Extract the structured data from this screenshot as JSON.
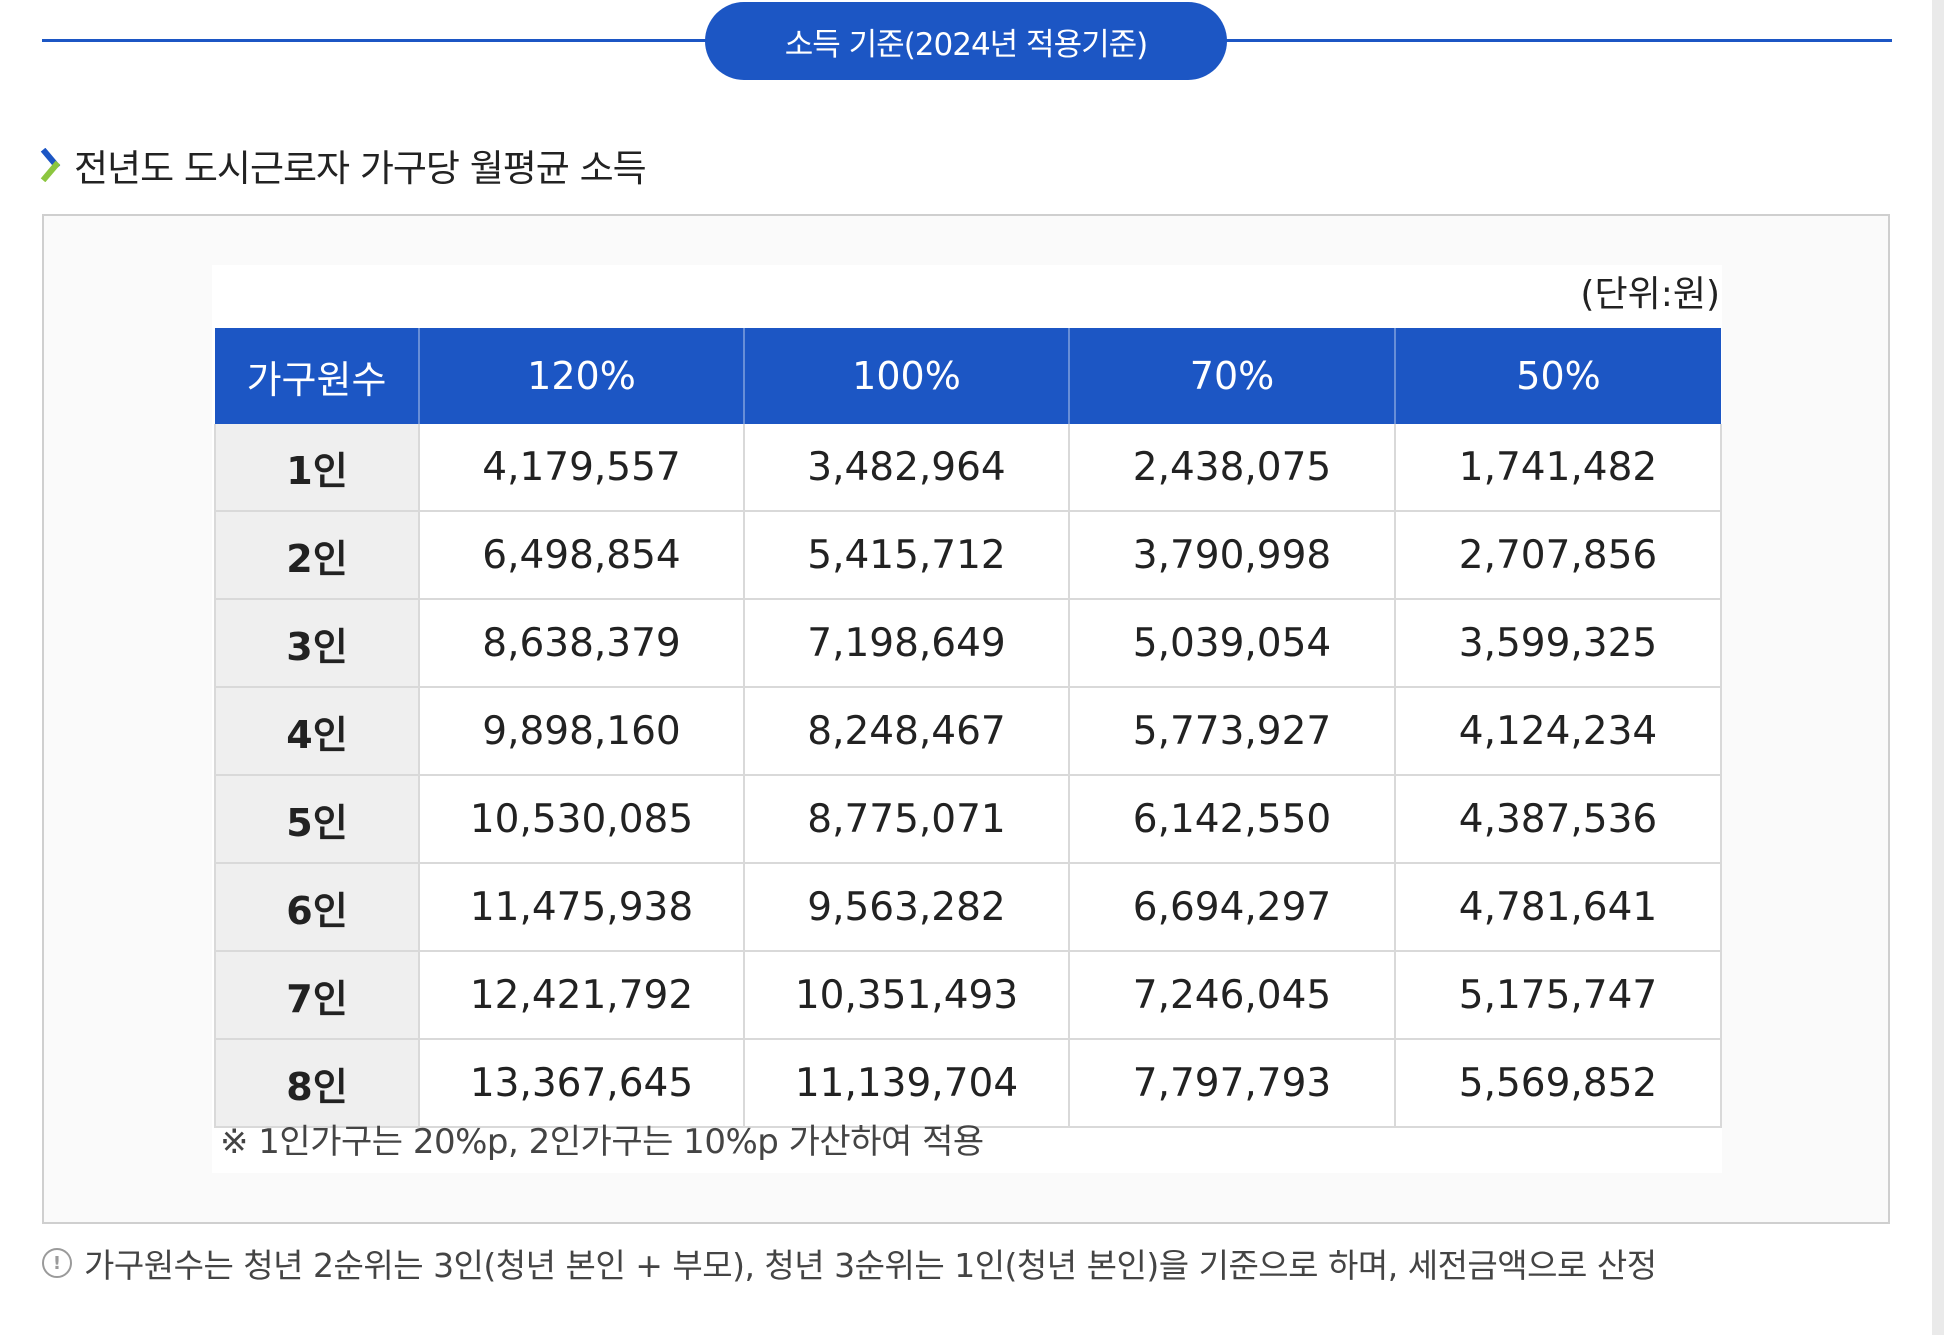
{
  "header": {
    "pill_label": "소득 기준(2024년 적용기준)"
  },
  "section": {
    "title": "전년도 도시근로자 가구당 월평균 소득",
    "icon": "chevron-right-icon"
  },
  "table": {
    "unit": "(단위:원)",
    "columns": [
      "가구원수",
      "120%",
      "100%",
      "70%",
      "50%"
    ],
    "rows": [
      [
        "1인",
        "4,179,557",
        "3,482,964",
        "2,438,075",
        "1,741,482"
      ],
      [
        "2인",
        "6,498,854",
        "5,415,712",
        "3,790,998",
        "2,707,856"
      ],
      [
        "3인",
        "8,638,379",
        "7,198,649",
        "5,039,054",
        "3,599,325"
      ],
      [
        "4인",
        "9,898,160",
        "8,248,467",
        "5,773,927",
        "4,124,234"
      ],
      [
        "5인",
        "10,530,085",
        "8,775,071",
        "6,142,550",
        "4,387,536"
      ],
      [
        "6인",
        "11,475,938",
        "9,563,282",
        "6,694,297",
        "4,781,641"
      ],
      [
        "7인",
        "12,421,792",
        "10,351,493",
        "7,246,045",
        "5,175,747"
      ],
      [
        "8인",
        "13,367,645",
        "11,139,704",
        "7,797,793",
        "5,569,852"
      ]
    ],
    "note": "※ 1인가구는 20%p, 2인가구는 10%p 가산하여 적용"
  },
  "footnote": {
    "icon": "info-icon",
    "text": "가구원수는 청년 2순위는 3인(청년 본인 + 부모), 청년 3순위는 1인(청년 본인)을 기준으로 하며, 세전금액으로 산정"
  },
  "colors": {
    "accent": "#1c56c4",
    "rowhead_bg": "#efefef",
    "chevron_top": "#1c56c4",
    "chevron_bottom": "#8cc63f"
  }
}
